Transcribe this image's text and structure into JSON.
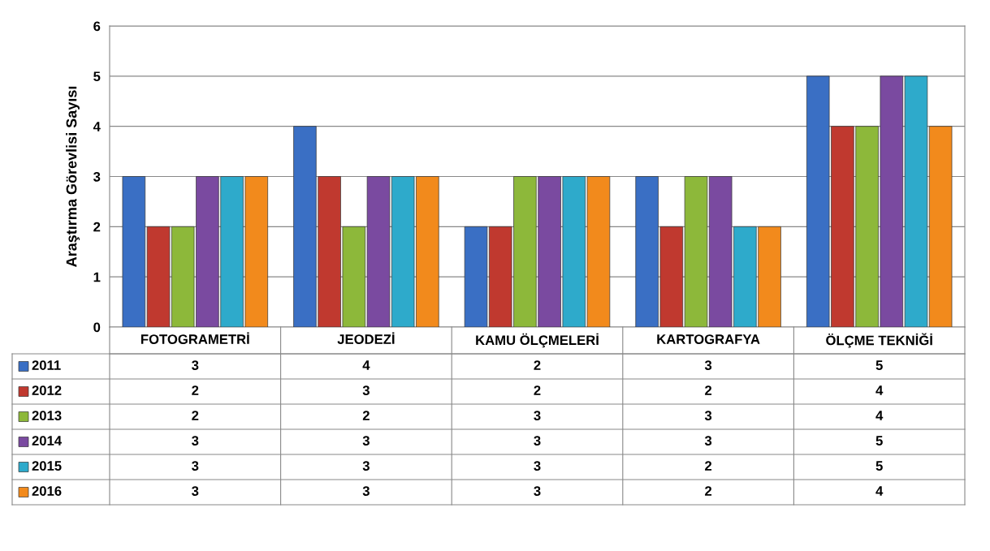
{
  "chart_data": {
    "type": "bar",
    "ylabel": "Araştırma Görevlisi Sayısı",
    "categories": [
      "FOTOGRAMETRİ",
      "JEODEZİ",
      "KAMU ÖLÇMELERİ",
      "KARTOGRAFYA",
      "ÖLÇME TEKNİĞİ"
    ],
    "series": [
      {
        "name": "2011",
        "color": "#3a6fc4",
        "values": [
          3,
          4,
          2,
          3,
          5
        ]
      },
      {
        "name": "2012",
        "color": "#c0392f",
        "values": [
          2,
          3,
          2,
          2,
          4
        ]
      },
      {
        "name": "2013",
        "color": "#8db83a",
        "values": [
          2,
          2,
          3,
          3,
          4
        ]
      },
      {
        "name": "2014",
        "color": "#7a4aa0",
        "values": [
          3,
          3,
          3,
          3,
          5
        ]
      },
      {
        "name": "2015",
        "color": "#2eaacb",
        "values": [
          3,
          3,
          3,
          2,
          5
        ]
      },
      {
        "name": "2016",
        "color": "#f28a1c",
        "values": [
          3,
          3,
          3,
          2,
          4
        ]
      }
    ],
    "ylim": [
      0,
      6
    ],
    "yticks": [
      0,
      1,
      2,
      3,
      4,
      5,
      6
    ],
    "grid": "y",
    "data_labels": true,
    "legend": "bottom left"
  }
}
